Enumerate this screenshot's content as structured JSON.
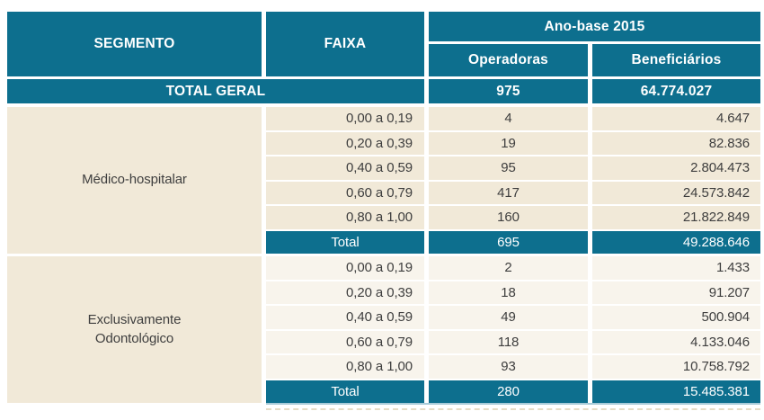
{
  "colors": {
    "teal": "#0d6f8e",
    "section1_bg": "#f1e9d8",
    "section2_bg": "#f8f4ec",
    "body_text": "#3e3e3e",
    "header_text": "#ffffff",
    "bottom_accent": "#a9cbd8"
  },
  "table": {
    "headers": {
      "segmento": "SEGMENTO",
      "faixa": "FAIXA",
      "ano_base": "Ano-base 2015",
      "operadoras": "Operadoras",
      "beneficiarios": "Beneficiários"
    },
    "total_geral": {
      "label": "TOTAL GERAL",
      "operadoras": "975",
      "beneficiarios": "64.774.027"
    },
    "segments": [
      {
        "name": "Médico-hospitalar",
        "rows": [
          {
            "faixa": "0,00 a 0,19",
            "operadoras": "4",
            "beneficiarios": "4.647"
          },
          {
            "faixa": "0,20 a 0,39",
            "operadoras": "19",
            "beneficiarios": "82.836"
          },
          {
            "faixa": "0,40 a 0,59",
            "operadoras": "95",
            "beneficiarios": "2.804.473"
          },
          {
            "faixa": "0,60 a 0,79",
            "operadoras": "417",
            "beneficiarios": "24.573.842"
          },
          {
            "faixa": "0,80 a 1,00",
            "operadoras": "160",
            "beneficiarios": "21.822.849"
          }
        ],
        "total": {
          "label": "Total",
          "operadoras": "695",
          "beneficiarios": "49.288.646"
        }
      },
      {
        "name": "Exclusivamente Odontológico",
        "rows": [
          {
            "faixa": "0,00 a 0,19",
            "operadoras": "2",
            "beneficiarios": "1.433"
          },
          {
            "faixa": "0,20 a 0,39",
            "operadoras": "18",
            "beneficiarios": "91.207"
          },
          {
            "faixa": "0,40 a 0,59",
            "operadoras": "49",
            "beneficiarios": "500.904"
          },
          {
            "faixa": "0,60 a 0,79",
            "operadoras": "118",
            "beneficiarios": "4.133.046"
          },
          {
            "faixa": "0,80 a 1,00",
            "operadoras": "93",
            "beneficiarios": "10.758.792"
          }
        ],
        "total": {
          "label": "Total",
          "operadoras": "280",
          "beneficiarios": "15.485.381"
        }
      }
    ]
  }
}
